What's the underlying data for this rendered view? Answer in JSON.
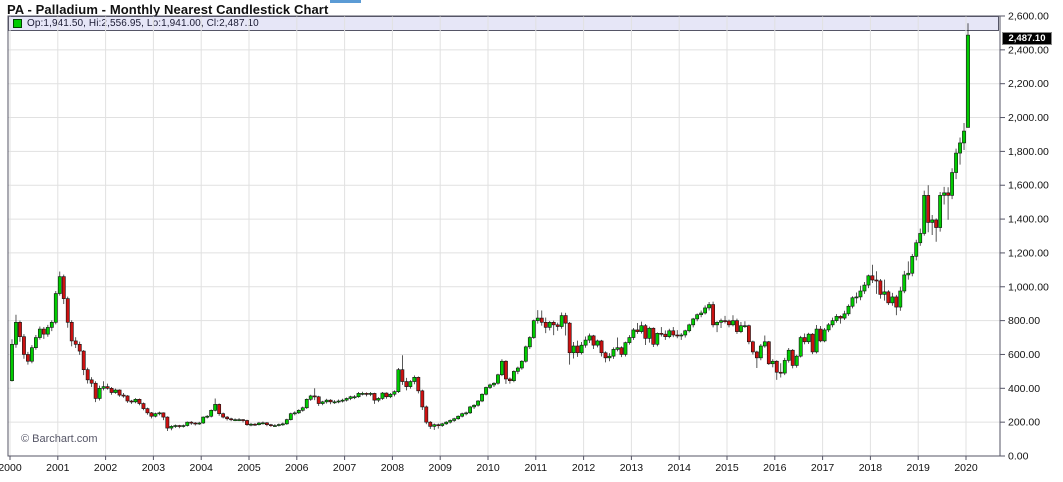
{
  "header": {
    "title": "PA - Palladium - Monthly Nearest Candlestick Chart"
  },
  "legend": {
    "text": "Op:1,941.50, Hi:2,556.95, Lo:1,941.00, Cl:2,487.10",
    "open": "1,941.50",
    "high": "2,556.95",
    "low": "1,941.00",
    "close": "2,487.10",
    "marker_color": "#00cc00"
  },
  "price_tag": {
    "value": "2,487.10",
    "bg": "#000000",
    "text_color": "#ffffff"
  },
  "watermark": {
    "text": "© Barchart.com"
  },
  "chart_data": {
    "type": "candlestick",
    "title": "PA - Palladium - Monthly Nearest Candlestick Chart",
    "interval": "monthly",
    "start": "2000-01",
    "end": "2020-01",
    "x_tick_years": [
      2000,
      2001,
      2002,
      2003,
      2004,
      2005,
      2006,
      2007,
      2008,
      2009,
      2010,
      2011,
      2012,
      2013,
      2014,
      2015,
      2016,
      2017,
      2018,
      2019,
      2020
    ],
    "y_ticks": [
      0,
      200,
      400,
      600,
      800,
      1000,
      1200,
      1400,
      1600,
      1800,
      2000,
      2200,
      2400,
      2600
    ],
    "ylim": [
      0,
      2600
    ],
    "grid": true,
    "legend_position": "top-left",
    "last_close": 2487.1,
    "colors": {
      "up": "#00cc00",
      "down": "#cc1111",
      "outline": "#111111",
      "grid": "#e1e1e1",
      "axis": "#555566",
      "legend_bg": "#e6e6f7",
      "label": "#111111"
    },
    "candles_format": [
      "open",
      "high",
      "low",
      "close"
    ],
    "candles": [
      [
        445,
        690,
        440,
        660
      ],
      [
        660,
        835,
        640,
        790
      ],
      [
        790,
        800,
        675,
        705
      ],
      [
        705,
        720,
        575,
        600
      ],
      [
        600,
        615,
        540,
        560
      ],
      [
        560,
        655,
        548,
        640
      ],
      [
        640,
        715,
        628,
        700
      ],
      [
        700,
        765,
        688,
        750
      ],
      [
        750,
        762,
        692,
        720
      ],
      [
        720,
        775,
        705,
        760
      ],
      [
        760,
        802,
        738,
        790
      ],
      [
        790,
        975,
        778,
        960
      ],
      [
        960,
        1090,
        948,
        1060
      ],
      [
        1060,
        1072,
        898,
        930
      ],
      [
        930,
        942,
        758,
        790
      ],
      [
        790,
        802,
        648,
        680
      ],
      [
        680,
        702,
        638,
        660
      ],
      [
        660,
        676,
        598,
        620
      ],
      [
        620,
        626,
        478,
        510
      ],
      [
        510,
        522,
        428,
        450
      ],
      [
        450,
        466,
        408,
        430
      ],
      [
        430,
        442,
        318,
        340
      ],
      [
        340,
        416,
        328,
        400
      ],
      [
        400,
        442,
        388,
        410
      ],
      [
        410,
        428,
        392,
        400
      ],
      [
        400,
        408,
        362,
        375
      ],
      [
        375,
        398,
        368,
        390
      ],
      [
        390,
        394,
        350,
        360
      ],
      [
        360,
        372,
        344,
        355
      ],
      [
        355,
        360,
        314,
        325
      ],
      [
        325,
        332,
        308,
        320
      ],
      [
        320,
        342,
        312,
        335
      ],
      [
        335,
        340,
        300,
        310
      ],
      [
        310,
        316,
        270,
        280
      ],
      [
        280,
        286,
        244,
        255
      ],
      [
        255,
        260,
        222,
        235
      ],
      [
        235,
        256,
        228,
        250
      ],
      [
        250,
        262,
        240,
        255
      ],
      [
        255,
        258,
        212,
        230
      ],
      [
        230,
        234,
        148,
        165
      ],
      [
        165,
        182,
        152,
        175
      ],
      [
        175,
        186,
        166,
        180
      ],
      [
        180,
        184,
        164,
        175
      ],
      [
        175,
        186,
        168,
        180
      ],
      [
        180,
        204,
        174,
        200
      ],
      [
        200,
        206,
        184,
        195
      ],
      [
        195,
        200,
        180,
        190
      ],
      [
        190,
        202,
        184,
        195
      ],
      [
        195,
        234,
        190,
        230
      ],
      [
        230,
        242,
        222,
        235
      ],
      [
        235,
        275,
        228,
        270
      ],
      [
        270,
        340,
        264,
        305
      ],
      [
        305,
        310,
        238,
        250
      ],
      [
        250,
        256,
        222,
        230
      ],
      [
        230,
        236,
        210,
        220
      ],
      [
        220,
        226,
        206,
        215
      ],
      [
        215,
        222,
        206,
        215
      ],
      [
        215,
        224,
        206,
        215
      ],
      [
        215,
        218,
        198,
        210
      ],
      [
        210,
        214,
        178,
        185
      ],
      [
        185,
        196,
        176,
        188
      ],
      [
        188,
        194,
        178,
        185
      ],
      [
        185,
        202,
        180,
        195
      ],
      [
        195,
        204,
        186,
        196
      ],
      [
        196,
        200,
        176,
        185
      ],
      [
        185,
        190,
        172,
        180
      ],
      [
        180,
        188,
        172,
        180
      ],
      [
        180,
        192,
        174,
        186
      ],
      [
        186,
        198,
        178,
        190
      ],
      [
        190,
        220,
        184,
        215
      ],
      [
        215,
        256,
        210,
        250
      ],
      [
        250,
        264,
        240,
        255
      ],
      [
        255,
        276,
        248,
        270
      ],
      [
        270,
        292,
        262,
        285
      ],
      [
        285,
        340,
        278,
        335
      ],
      [
        335,
        362,
        326,
        355
      ],
      [
        355,
        400,
        330,
        350
      ],
      [
        350,
        356,
        296,
        310
      ],
      [
        310,
        326,
        300,
        320
      ],
      [
        320,
        338,
        310,
        330
      ],
      [
        330,
        336,
        306,
        320
      ],
      [
        320,
        330,
        308,
        320
      ],
      [
        320,
        334,
        312,
        325
      ],
      [
        325,
        338,
        316,
        330
      ],
      [
        330,
        346,
        322,
        340
      ],
      [
        340,
        356,
        330,
        350
      ],
      [
        350,
        360,
        336,
        350
      ],
      [
        350,
        378,
        344,
        370
      ],
      [
        370,
        380,
        358,
        370
      ],
      [
        370,
        376,
        352,
        365
      ],
      [
        365,
        378,
        354,
        370
      ],
      [
        370,
        374,
        308,
        330
      ],
      [
        330,
        348,
        318,
        340
      ],
      [
        340,
        378,
        332,
        372
      ],
      [
        372,
        376,
        338,
        350
      ],
      [
        350,
        372,
        342,
        365
      ],
      [
        365,
        388,
        352,
        380
      ],
      [
        380,
        520,
        372,
        510
      ],
      [
        510,
        595,
        420,
        440
      ],
      [
        440,
        462,
        388,
        410
      ],
      [
        410,
        448,
        398,
        440
      ],
      [
        440,
        476,
        424,
        465
      ],
      [
        465,
        470,
        370,
        385
      ],
      [
        385,
        392,
        272,
        290
      ],
      [
        290,
        298,
        188,
        200
      ],
      [
        200,
        206,
        160,
        175
      ],
      [
        175,
        192,
        154,
        185
      ],
      [
        185,
        192,
        162,
        180
      ],
      [
        180,
        196,
        172,
        190
      ],
      [
        190,
        206,
        184,
        200
      ],
      [
        200,
        216,
        192,
        210
      ],
      [
        210,
        226,
        202,
        220
      ],
      [
        220,
        240,
        214,
        235
      ],
      [
        235,
        256,
        228,
        250
      ],
      [
        250,
        262,
        240,
        255
      ],
      [
        255,
        296,
        248,
        290
      ],
      [
        290,
        306,
        278,
        300
      ],
      [
        300,
        330,
        292,
        325
      ],
      [
        325,
        370,
        318,
        365
      ],
      [
        365,
        410,
        358,
        405
      ],
      [
        405,
        428,
        396,
        420
      ],
      [
        420,
        436,
        408,
        430
      ],
      [
        430,
        486,
        422,
        480
      ],
      [
        480,
        572,
        472,
        560
      ],
      [
        560,
        566,
        426,
        455
      ],
      [
        455,
        464,
        428,
        445
      ],
      [
        445,
        506,
        436,
        500
      ],
      [
        500,
        528,
        484,
        520
      ],
      [
        520,
        566,
        510,
        560
      ],
      [
        560,
        652,
        552,
        645
      ],
      [
        645,
        708,
        632,
        700
      ],
      [
        700,
        806,
        692,
        800
      ],
      [
        800,
        862,
        782,
        815
      ],
      [
        815,
        860,
        770,
        790
      ],
      [
        790,
        818,
        726,
        760
      ],
      [
        760,
        798,
        742,
        790
      ],
      [
        790,
        800,
        714,
        775
      ],
      [
        775,
        788,
        740,
        765
      ],
      [
        765,
        848,
        752,
        830
      ],
      [
        830,
        846,
        712,
        785
      ],
      [
        785,
        792,
        540,
        610
      ],
      [
        610,
        674,
        576,
        650
      ],
      [
        650,
        682,
        586,
        610
      ],
      [
        610,
        674,
        600,
        655
      ],
      [
        655,
        706,
        640,
        685
      ],
      [
        685,
        724,
        668,
        710
      ],
      [
        710,
        716,
        632,
        655
      ],
      [
        655,
        688,
        642,
        680
      ],
      [
        680,
        686,
        588,
        610
      ],
      [
        610,
        618,
        553,
        580
      ],
      [
        580,
        608,
        560,
        590
      ],
      [
        590,
        642,
        574,
        630
      ],
      [
        630,
        700,
        618,
        640
      ],
      [
        640,
        648,
        584,
        600
      ],
      [
        600,
        676,
        588,
        670
      ],
      [
        670,
        714,
        658,
        700
      ],
      [
        700,
        756,
        686,
        745
      ],
      [
        745,
        786,
        722,
        735
      ],
      [
        735,
        794,
        724,
        770
      ],
      [
        770,
        780,
        656,
        695
      ],
      [
        695,
        764,
        670,
        755
      ],
      [
        755,
        760,
        644,
        660
      ],
      [
        660,
        730,
        648,
        725
      ],
      [
        725,
        762,
        706,
        720
      ],
      [
        720,
        742,
        686,
        705
      ],
      [
        705,
        752,
        696,
        740
      ],
      [
        740,
        762,
        702,
        715
      ],
      [
        715,
        744,
        696,
        710
      ],
      [
        710,
        726,
        686,
        715
      ],
      [
        715,
        746,
        700,
        740
      ],
      [
        740,
        782,
        730,
        775
      ],
      [
        775,
        816,
        760,
        810
      ],
      [
        810,
        842,
        796,
        835
      ],
      [
        835,
        860,
        820,
        845
      ],
      [
        845,
        890,
        836,
        875
      ],
      [
        875,
        910,
        860,
        895
      ],
      [
        895,
        912,
        760,
        775
      ],
      [
        775,
        796,
        732,
        790
      ],
      [
        790,
        812,
        756,
        800
      ],
      [
        800,
        828,
        784,
        798
      ],
      [
        798,
        806,
        760,
        775
      ],
      [
        775,
        832,
        766,
        800
      ],
      [
        800,
        812,
        722,
        735
      ],
      [
        735,
        792,
        726,
        770
      ],
      [
        770,
        796,
        756,
        770
      ],
      [
        770,
        776,
        660,
        675
      ],
      [
        675,
        682,
        600,
        615
      ],
      [
        615,
        622,
        520,
        580
      ],
      [
        580,
        662,
        566,
        650
      ],
      [
        650,
        712,
        640,
        675
      ],
      [
        675,
        680,
        538,
        545
      ],
      [
        545,
        572,
        524,
        560
      ],
      [
        560,
        566,
        450,
        495
      ],
      [
        495,
        548,
        464,
        490
      ],
      [
        490,
        580,
        478,
        565
      ],
      [
        565,
        638,
        552,
        625
      ],
      [
        625,
        632,
        518,
        535
      ],
      [
        535,
        598,
        522,
        590
      ],
      [
        590,
        710,
        582,
        700
      ],
      [
        700,
        724,
        660,
        675
      ],
      [
        675,
        728,
        662,
        720
      ],
      [
        720,
        726,
        602,
        615
      ],
      [
        615,
        774,
        606,
        750
      ],
      [
        750,
        768,
        672,
        680
      ],
      [
        680,
        756,
        672,
        745
      ],
      [
        745,
        786,
        732,
        775
      ],
      [
        775,
        818,
        760,
        800
      ],
      [
        800,
        838,
        788,
        825
      ],
      [
        825,
        832,
        782,
        815
      ],
      [
        815,
        858,
        804,
        840
      ],
      [
        840,
        896,
        828,
        885
      ],
      [
        885,
        944,
        872,
        935
      ],
      [
        935,
        966,
        902,
        940
      ],
      [
        940,
        1006,
        920,
        975
      ],
      [
        975,
        1028,
        958,
        1010
      ],
      [
        1010,
        1072,
        992,
        1065
      ],
      [
        1065,
        1130,
        1022,
        1040
      ],
      [
        1040,
        1092,
        958,
        1035
      ],
      [
        1035,
        1046,
        930,
        955
      ],
      [
        955,
        1042,
        918,
        970
      ],
      [
        970,
        980,
        892,
        905
      ],
      [
        905,
        964,
        888,
        940
      ],
      [
        940,
        952,
        832,
        880
      ],
      [
        880,
        1000,
        858,
        975
      ],
      [
        975,
        1094,
        962,
        1070
      ],
      [
        1070,
        1150,
        1042,
        1080
      ],
      [
        1080,
        1194,
        1062,
        1180
      ],
      [
        1180,
        1278,
        1156,
        1260
      ],
      [
        1260,
        1344,
        1242,
        1315
      ],
      [
        1315,
        1568,
        1302,
        1540
      ],
      [
        1540,
        1600,
        1322,
        1380
      ],
      [
        1380,
        1424,
        1306,
        1395
      ],
      [
        1395,
        1404,
        1266,
        1350
      ],
      [
        1350,
        1560,
        1326,
        1540
      ],
      [
        1540,
        1590,
        1486,
        1555
      ],
      [
        1555,
        1588,
        1396,
        1540
      ],
      [
        1540,
        1700,
        1518,
        1675
      ],
      [
        1675,
        1816,
        1636,
        1790
      ],
      [
        1790,
        1882,
        1722,
        1850
      ],
      [
        1850,
        1968,
        1808,
        1920
      ],
      [
        1941.5,
        2556.95,
        1941,
        2487.1
      ]
    ]
  }
}
